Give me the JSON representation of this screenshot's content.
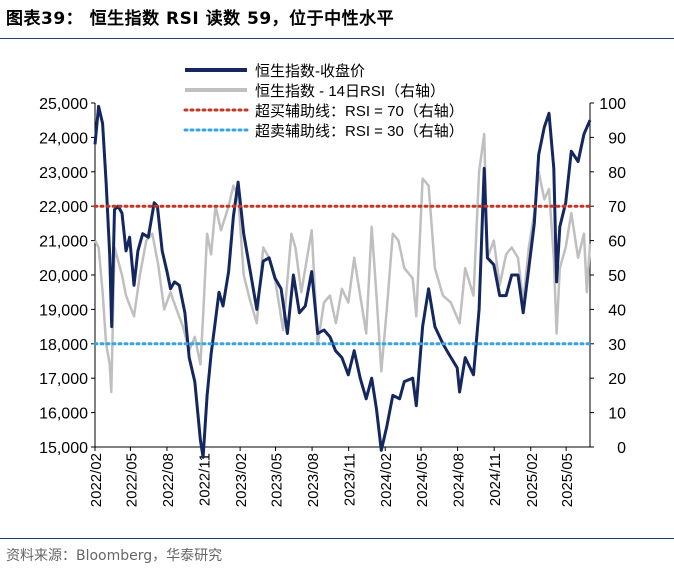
{
  "title": "图表39： 恒生指数 RSI 读数 59，位于中性水平",
  "source": "资料来源：Bloomberg，华泰研究",
  "chart_data": {
    "type": "line",
    "x_tick_labels": [
      "2022/02",
      "2022/05",
      "2022/08",
      "2022/11",
      "2023/02",
      "2023/05",
      "2023/08",
      "2023/11",
      "2024/02",
      "2024/05",
      "2024/08",
      "2024/11",
      "2025/02",
      "2025/05"
    ],
    "y_left": {
      "ticks": [
        "15,000",
        "16,000",
        "17,000",
        "18,000",
        "19,000",
        "20,000",
        "21,000",
        "22,000",
        "23,000",
        "24,000",
        "25,000"
      ],
      "range": [
        15000,
        25000
      ]
    },
    "y_right": {
      "ticks": [
        "0",
        "10",
        "20",
        "30",
        "40",
        "50",
        "60",
        "70",
        "80",
        "90",
        "100"
      ],
      "range": [
        0,
        100
      ]
    },
    "legend": {
      "position": "top",
      "items": [
        "恒生指数-收盘价",
        "恒生指数 - 14日RSI（右轴）",
        "超买辅助线：RSI = 70（右轴）",
        "超卖辅助线：RSI = 30（右轴）"
      ]
    },
    "colors": {
      "hsi": "#14285f",
      "rsi": "#bfbfbf",
      "overbought": "#c0392b",
      "oversold": "#3aa4e0"
    },
    "x_range": [
      "2022-02-01",
      "2025-06-30"
    ],
    "series": [
      {
        "name": "恒生指数-收盘价",
        "axis": "left",
        "points": [
          [
            "2022-02-01",
            23800
          ],
          [
            "2022-02-10",
            24900
          ],
          [
            "2022-02-20",
            24400
          ],
          [
            "2022-03-01",
            22700
          ],
          [
            "2022-03-10",
            20600
          ],
          [
            "2022-03-15",
            18500
          ],
          [
            "2022-03-22",
            21900
          ],
          [
            "2022-03-31",
            22000
          ],
          [
            "2022-04-10",
            21800
          ],
          [
            "2022-04-20",
            20700
          ],
          [
            "2022-04-29",
            21100
          ],
          [
            "2022-05-10",
            19700
          ],
          [
            "2022-05-20",
            20700
          ],
          [
            "2022-06-01",
            21200
          ],
          [
            "2022-06-15",
            21100
          ],
          [
            "2022-06-30",
            22100
          ],
          [
            "2022-07-08",
            22000
          ],
          [
            "2022-07-20",
            20700
          ],
          [
            "2022-08-01",
            20100
          ],
          [
            "2022-08-10",
            19600
          ],
          [
            "2022-08-20",
            19800
          ],
          [
            "2022-09-01",
            19700
          ],
          [
            "2022-09-15",
            18900
          ],
          [
            "2022-09-26",
            17600
          ],
          [
            "2022-10-10",
            16900
          ],
          [
            "2022-10-24",
            15200
          ],
          [
            "2022-10-31",
            14700
          ],
          [
            "2022-11-10",
            16500
          ],
          [
            "2022-11-20",
            17700
          ],
          [
            "2022-11-30",
            18600
          ],
          [
            "2022-12-10",
            19500
          ],
          [
            "2022-12-20",
            19100
          ],
          [
            "2023-01-03",
            20100
          ],
          [
            "2023-01-15",
            21700
          ],
          [
            "2023-01-27",
            22700
          ],
          [
            "2023-02-10",
            21200
          ],
          [
            "2023-02-28",
            20000
          ],
          [
            "2023-03-15",
            19000
          ],
          [
            "2023-03-31",
            20400
          ],
          [
            "2023-04-15",
            20500
          ],
          [
            "2023-04-30",
            19900
          ],
          [
            "2023-05-15",
            19600
          ],
          [
            "2023-05-31",
            18300
          ],
          [
            "2023-06-15",
            20000
          ],
          [
            "2023-06-30",
            18900
          ],
          [
            "2023-07-15",
            19100
          ],
          [
            "2023-07-31",
            20100
          ],
          [
            "2023-08-15",
            18300
          ],
          [
            "2023-08-31",
            18400
          ],
          [
            "2023-09-15",
            18200
          ],
          [
            "2023-09-29",
            17800
          ],
          [
            "2023-10-15",
            17600
          ],
          [
            "2023-10-31",
            17100
          ],
          [
            "2023-11-15",
            17800
          ],
          [
            "2023-11-30",
            17000
          ],
          [
            "2023-12-15",
            16400
          ],
          [
            "2023-12-29",
            17000
          ],
          [
            "2024-01-10",
            16100
          ],
          [
            "2024-01-22",
            14900
          ],
          [
            "2024-02-05",
            15600
          ],
          [
            "2024-02-20",
            16500
          ],
          [
            "2024-03-08",
            16400
          ],
          [
            "2024-03-20",
            16900
          ],
          [
            "2024-04-10",
            17000
          ],
          [
            "2024-04-19",
            16200
          ],
          [
            "2024-05-05",
            18500
          ],
          [
            "2024-05-20",
            19600
          ],
          [
            "2024-06-05",
            18500
          ],
          [
            "2024-06-25",
            18000
          ],
          [
            "2024-07-10",
            17700
          ],
          [
            "2024-07-31",
            17300
          ],
          [
            "2024-08-06",
            16600
          ],
          [
            "2024-08-20",
            17600
          ],
          [
            "2024-09-10",
            17100
          ],
          [
            "2024-09-24",
            19000
          ],
          [
            "2024-10-07",
            23100
          ],
          [
            "2024-10-15",
            20500
          ],
          [
            "2024-10-31",
            20300
          ],
          [
            "2024-11-15",
            19400
          ],
          [
            "2024-12-01",
            19400
          ],
          [
            "2024-12-15",
            20000
          ],
          [
            "2024-12-31",
            20000
          ],
          [
            "2025-01-13",
            18900
          ],
          [
            "2025-01-27",
            20200
          ],
          [
            "2025-02-10",
            21500
          ],
          [
            "2025-02-21",
            23500
          ],
          [
            "2025-03-07",
            24300
          ],
          [
            "2025-03-19",
            24700
          ],
          [
            "2025-03-31",
            23100
          ],
          [
            "2025-04-07",
            19800
          ],
          [
            "2025-04-15",
            21400
          ],
          [
            "2025-04-30",
            22100
          ],
          [
            "2025-05-14",
            23600
          ],
          [
            "2025-05-31",
            23300
          ],
          [
            "2025-06-15",
            24100
          ],
          [
            "2025-06-30",
            24500
          ]
        ]
      },
      {
        "name": "恒生指数 - 14日RSI（右轴）",
        "axis": "right",
        "points": [
          [
            "2022-02-01",
            60
          ],
          [
            "2022-02-10",
            58
          ],
          [
            "2022-02-20",
            45
          ],
          [
            "2022-03-01",
            30
          ],
          [
            "2022-03-10",
            24
          ],
          [
            "2022-03-14",
            16
          ],
          [
            "2022-03-22",
            58
          ],
          [
            "2022-04-10",
            50
          ],
          [
            "2022-04-20",
            44
          ],
          [
            "2022-05-10",
            38
          ],
          [
            "2022-05-25",
            50
          ],
          [
            "2022-06-10",
            60
          ],
          [
            "2022-06-25",
            62
          ],
          [
            "2022-07-10",
            53
          ],
          [
            "2022-07-25",
            40
          ],
          [
            "2022-08-10",
            45
          ],
          [
            "2022-08-25",
            40
          ],
          [
            "2022-09-10",
            35
          ],
          [
            "2022-09-26",
            28
          ],
          [
            "2022-10-10",
            32
          ],
          [
            "2022-10-24",
            24
          ],
          [
            "2022-10-31",
            38
          ],
          [
            "2022-11-10",
            62
          ],
          [
            "2022-11-20",
            56
          ],
          [
            "2022-12-01",
            70
          ],
          [
            "2022-12-15",
            63
          ],
          [
            "2023-01-03",
            70
          ],
          [
            "2023-01-15",
            76
          ],
          [
            "2023-01-27",
            73
          ],
          [
            "2023-02-10",
            50
          ],
          [
            "2023-02-25",
            43
          ],
          [
            "2023-03-15",
            36
          ],
          [
            "2023-03-31",
            58
          ],
          [
            "2023-04-15",
            55
          ],
          [
            "2023-05-01",
            48
          ],
          [
            "2023-05-20",
            34
          ],
          [
            "2023-06-10",
            62
          ],
          [
            "2023-06-20",
            58
          ],
          [
            "2023-07-05",
            45
          ],
          [
            "2023-07-31",
            63
          ],
          [
            "2023-08-15",
            30
          ],
          [
            "2023-08-31",
            42
          ],
          [
            "2023-09-15",
            44
          ],
          [
            "2023-09-30",
            36
          ],
          [
            "2023-10-15",
            46
          ],
          [
            "2023-10-31",
            42
          ],
          [
            "2023-11-15",
            55
          ],
          [
            "2023-11-30",
            44
          ],
          [
            "2023-12-15",
            33
          ],
          [
            "2023-12-29",
            64
          ],
          [
            "2024-01-10",
            44
          ],
          [
            "2024-01-22",
            22
          ],
          [
            "2024-02-05",
            40
          ],
          [
            "2024-02-20",
            62
          ],
          [
            "2024-03-05",
            60
          ],
          [
            "2024-03-20",
            52
          ],
          [
            "2024-04-10",
            49
          ],
          [
            "2024-04-19",
            38
          ],
          [
            "2024-05-05",
            78
          ],
          [
            "2024-05-20",
            76
          ],
          [
            "2024-06-05",
            52
          ],
          [
            "2024-06-25",
            44
          ],
          [
            "2024-07-15",
            42
          ],
          [
            "2024-08-06",
            36
          ],
          [
            "2024-08-20",
            52
          ],
          [
            "2024-09-10",
            44
          ],
          [
            "2024-09-24",
            80
          ],
          [
            "2024-10-07",
            91
          ],
          [
            "2024-10-15",
            55
          ],
          [
            "2024-10-31",
            60
          ],
          [
            "2024-11-15",
            47
          ],
          [
            "2024-12-01",
            56
          ],
          [
            "2024-12-15",
            58
          ],
          [
            "2024-12-31",
            55
          ],
          [
            "2025-01-13",
            42
          ],
          [
            "2025-01-27",
            58
          ],
          [
            "2025-02-10",
            68
          ],
          [
            "2025-02-21",
            80
          ],
          [
            "2025-03-07",
            72
          ],
          [
            "2025-03-19",
            75
          ],
          [
            "2025-03-31",
            55
          ],
          [
            "2025-04-07",
            33
          ],
          [
            "2025-04-15",
            52
          ],
          [
            "2025-04-30",
            58
          ],
          [
            "2025-05-14",
            68
          ],
          [
            "2025-05-31",
            55
          ],
          [
            "2025-06-15",
            62
          ],
          [
            "2025-06-22",
            45
          ],
          [
            "2025-06-30",
            59
          ]
        ]
      },
      {
        "name": "超买辅助线：RSI = 70（右轴）",
        "axis": "right",
        "constant": 70
      },
      {
        "name": "超卖辅助线：RSI = 30（右轴）",
        "axis": "right",
        "constant": 30
      }
    ]
  }
}
